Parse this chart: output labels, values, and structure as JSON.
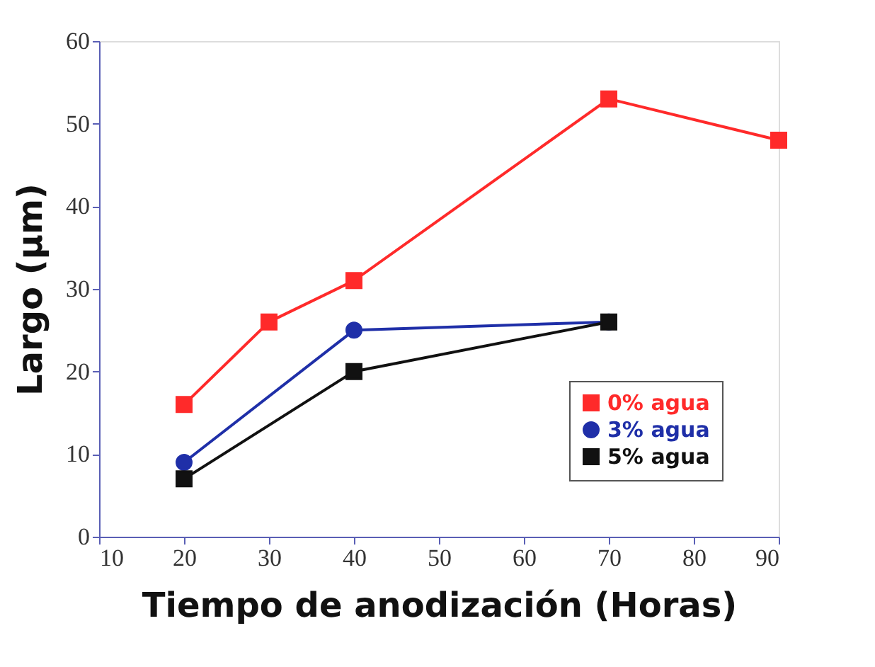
{
  "chart_data": {
    "type": "line",
    "xlabel": "Tiempo de anodización (Horas)",
    "ylabel": "Largo (μm)",
    "xlim": [
      10,
      90
    ],
    "xticks": [
      10,
      20,
      30,
      40,
      50,
      60,
      70,
      80,
      90
    ],
    "ylim": [
      0,
      60
    ],
    "yticks": [
      0,
      10,
      20,
      30,
      40,
      50,
      60
    ],
    "grid": false,
    "legend": "bottom right",
    "line_style": "solid",
    "series": [
      {
        "name": "0% agua",
        "color": "#ff2a2a",
        "marker": "square",
        "x": [
          20,
          30,
          40,
          70,
          90
        ],
        "values": [
          16,
          26,
          31,
          53,
          48
        ]
      },
      {
        "name": "3% agua",
        "color": "#1f2fa8",
        "marker": "circle",
        "x": [
          20,
          40,
          70
        ],
        "values": [
          9,
          25,
          26
        ]
      },
      {
        "name": "5% agua",
        "color": "#111111",
        "marker": "square",
        "x": [
          20,
          40,
          70
        ],
        "values": [
          7,
          20,
          26
        ]
      }
    ]
  }
}
